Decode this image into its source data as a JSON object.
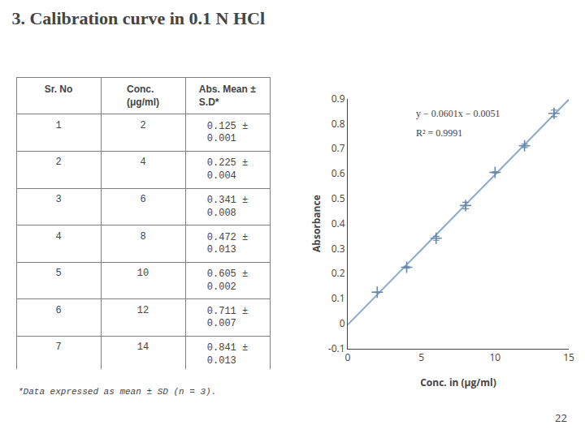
{
  "chart_data": [
    {
      "type": "table",
      "columns": [
        "Sr. No",
        "Conc.\n(μg/ml)",
        "Abs. Mean ±\nS.D*"
      ],
      "cells": [
        [
          1,
          2,
          3,
          4,
          5,
          6,
          7
        ],
        [
          2,
          4,
          6,
          8,
          10,
          12,
          14
        ],
        [
          "0.125 ± 0.001",
          "0.225 ± 0.004",
          "0.341 ± 0.008",
          "0.472 ± 0.013",
          "0.605 ± 0.002",
          "0.711 ± 0.007",
          "0.841 ± 0.013"
        ]
      ],
      "annotations": [
        "*Data expressed as mean ± SD (n = 3).",
        "22"
      ]
    },
    {
      "type": "scatter",
      "title": "3. Calibration curve in 0.1 N HCl",
      "xlabel": "Conc. in (μg/ml)",
      "ylabel": "Absorbance",
      "series": [
        {
          "type": "line",
          "x": [
            0,
            15
          ],
          "values": [
            -0.0051,
            0.8964
          ],
          "color": "#8aaac8",
          "line_style": "solid"
        },
        {
          "type": "scatter",
          "x": [
            2,
            4,
            6,
            8,
            10,
            12,
            14
          ],
          "values": [
            0.125,
            0.225,
            0.341,
            0.472,
            0.605,
            0.711,
            0.841
          ],
          "error": [
            0.001,
            0.004,
            0.008,
            0.013,
            0.002,
            0.007,
            0.013
          ],
          "color": "#6688aa",
          "marker": "cross"
        }
      ],
      "xlim": [
        0,
        15
      ],
      "xticks": [
        0,
        5,
        10,
        15
      ],
      "ylim": [
        -0.1,
        0.9
      ],
      "yticks": [
        -0.1,
        0,
        0.1,
        0.2,
        0.3,
        0.4,
        0.5,
        0.6,
        0.7,
        0.8,
        0.9
      ],
      "grid": false,
      "annotations": [
        "y − 0.0601x − 0.0051",
        "R² = 0.9991"
      ]
    }
  ]
}
